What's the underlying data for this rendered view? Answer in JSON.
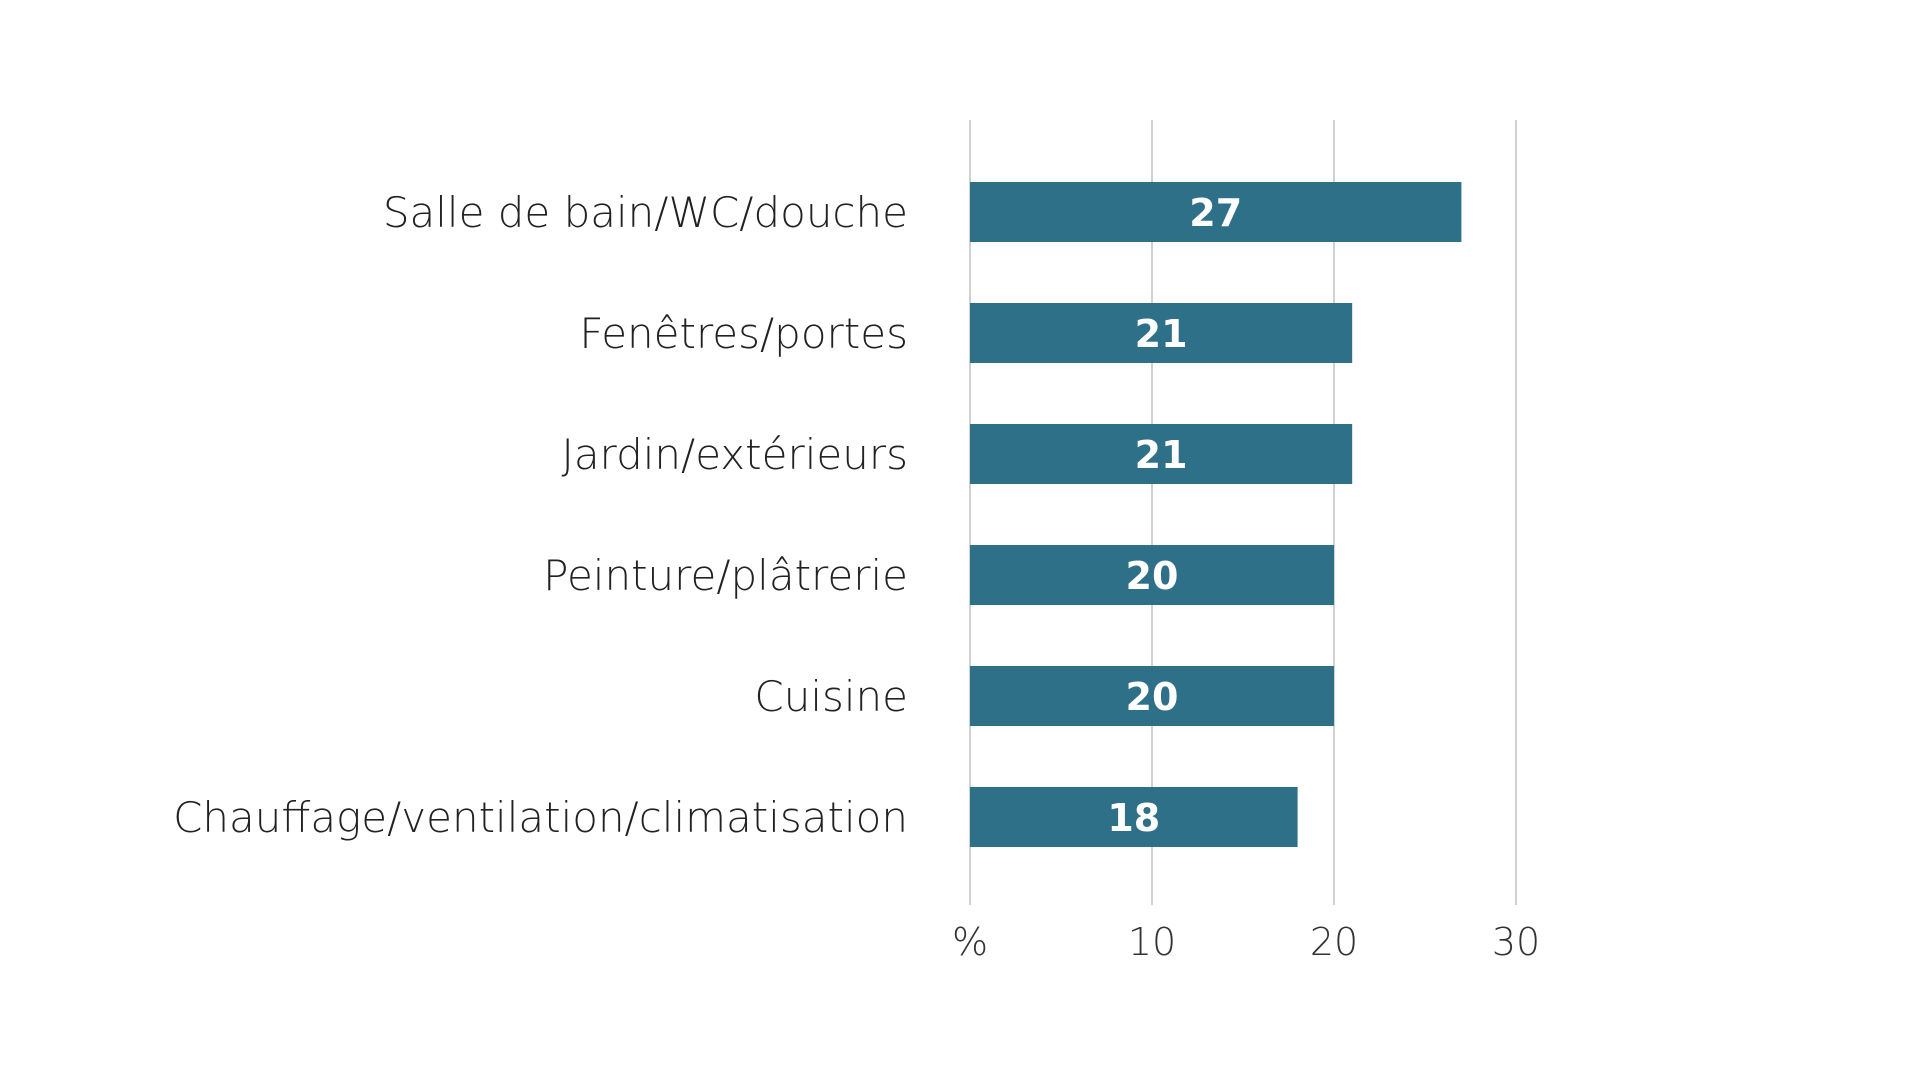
{
  "chart_data": {
    "type": "bar",
    "orientation": "horizontal",
    "categories": [
      "Salle de bain/WC/douche",
      "Fenêtres/portes",
      "Jardin/extérieurs",
      "Peinture/plâtrerie",
      "Cuisine",
      "Chauffage/ventilation/climatisation"
    ],
    "values": [
      27,
      21,
      21,
      20,
      20,
      18
    ],
    "data_labels": [
      "27",
      "21",
      "21",
      "20",
      "20",
      "18"
    ],
    "x_ticks": [
      {
        "value": 0,
        "label": "%"
      },
      {
        "value": 10,
        "label": "10"
      },
      {
        "value": 20,
        "label": "20"
      },
      {
        "value": 30,
        "label": "30"
      }
    ],
    "xlim": [
      0,
      30
    ],
    "grid": true,
    "legend": "none",
    "title": "",
    "xlabel": "",
    "ylabel": "",
    "colors": {
      "bar": "#2e7088",
      "grid": "#d0d0d0",
      "label": "#222222",
      "data_label": "#ffffff"
    }
  }
}
